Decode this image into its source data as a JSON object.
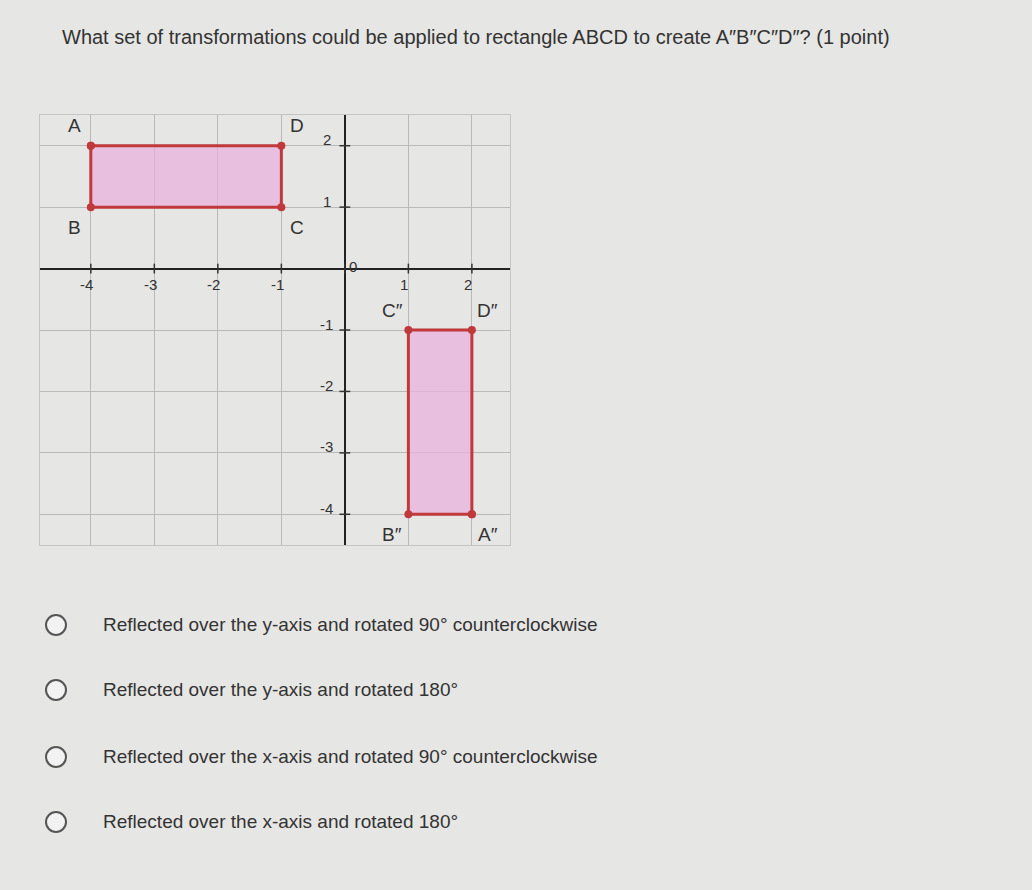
{
  "question": "What set of transformations could be applied to rectangle ABCD to create A″B″C″D″? (1 point)",
  "chart_data": {
    "type": "scatter",
    "xlim": [
      -4.8,
      2.6
    ],
    "ylim": [
      -4.5,
      2.5
    ],
    "xticks": [
      -4,
      -3,
      -2,
      -1,
      0,
      1,
      2
    ],
    "yticks": [
      -4,
      -3,
      -2,
      -1,
      1,
      2
    ],
    "grid": true,
    "marker": "circle",
    "series": [
      {
        "labels": [
          "A",
          "B",
          "C",
          "D"
        ],
        "x": [
          -4,
          -4,
          -1,
          -1
        ],
        "y": [
          2,
          1,
          1,
          2
        ],
        "color": "#c0393b"
      },
      {
        "labels": [
          "A″",
          "B″",
          "C″",
          "D″"
        ],
        "x": [
          2,
          1,
          1,
          2
        ],
        "y": [
          -4,
          -4,
          -1,
          -1
        ],
        "color": "#c0393b"
      }
    ]
  },
  "options": [
    "Reflected over the y-axis and rotated 90° counterclockwise",
    "Reflected over the y-axis and rotated 180°",
    "Reflected over the x-axis and rotated 90° counterclockwise",
    "Reflected over the x-axis and rotated 180°"
  ]
}
